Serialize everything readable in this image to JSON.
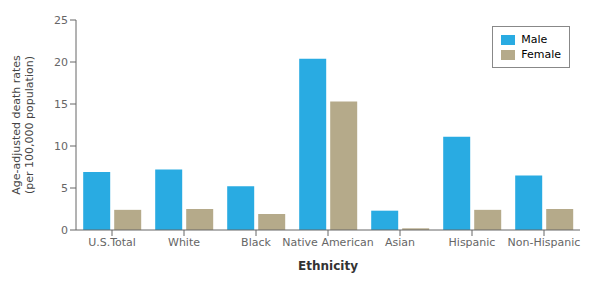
{
  "chart_data": {
    "type": "bar",
    "xlabel": "Ethnicity",
    "ylabel": "Age-adjusted death rates\n(per 100,000 population)",
    "categories": [
      "U.S.Total",
      "White",
      "Black",
      "Native American",
      "Asian",
      "Hispanic",
      "Non-Hispanic"
    ],
    "series": [
      {
        "name": "Male",
        "color": "#29ABE2",
        "values": [
          6.9,
          7.2,
          5.2,
          20.4,
          2.3,
          11.1,
          6.5
        ]
      },
      {
        "name": "Female",
        "color": "#B5AA8A",
        "values": [
          2.4,
          2.5,
          1.9,
          15.3,
          0.2,
          2.4,
          2.5
        ]
      }
    ],
    "ylim": [
      0,
      25
    ],
    "yticks": [
      0,
      5,
      10,
      15,
      20,
      25
    ],
    "grid": false,
    "legend": "upper right"
  }
}
